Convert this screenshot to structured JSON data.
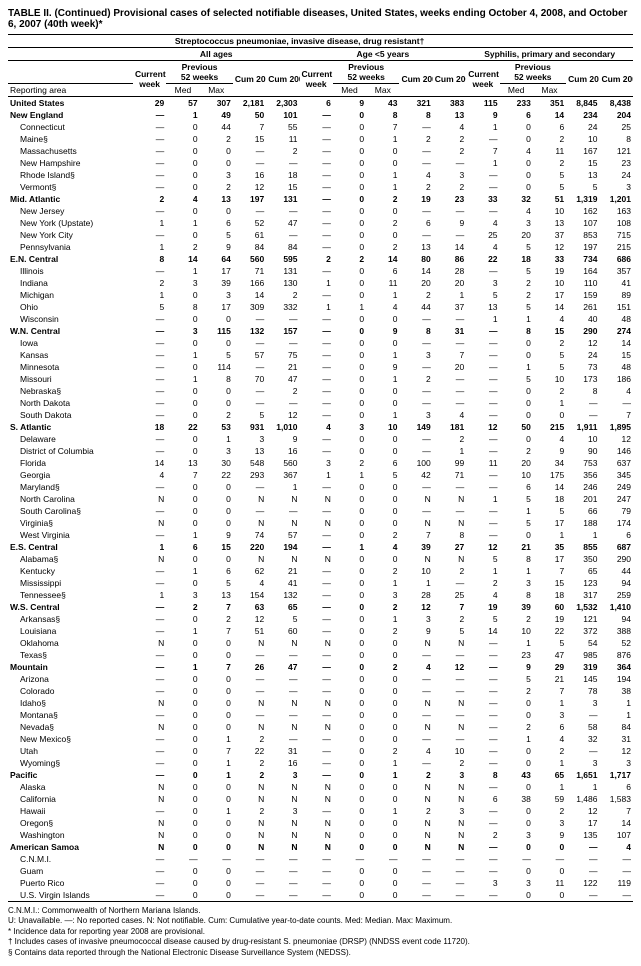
{
  "title": "TABLE II. (Continued) Provisional cases of selected notifiable diseases, United States, weeks ending October 4, 2008, and October 6, 2007 (40th week)*",
  "disease_group": "Streptococcus pneumoniae, invasive disease, drug resistant†",
  "groups": [
    "All ages",
    "Age <5 years",
    "Syphilis, primary and secondary"
  ],
  "subhdr": {
    "prev": "Previous",
    "wk": "52 weeks",
    "cur": "Current",
    "week": "week",
    "med": "Med",
    "max": "Max",
    "cum08": "Cum 2008",
    "cum07": "Cum 2007"
  },
  "area_hdr": "Reporting area",
  "rows": [
    {
      "t": "total",
      "n": "United States",
      "v": [
        "29",
        "57",
        "307",
        "2,181",
        "2,303",
        "6",
        "9",
        "43",
        "321",
        "383",
        "115",
        "233",
        "351",
        "8,845",
        "8,438"
      ]
    },
    {
      "t": "region",
      "n": "New England",
      "v": [
        "—",
        "1",
        "49",
        "50",
        "101",
        "—",
        "0",
        "8",
        "8",
        "13",
        "9",
        "6",
        "14",
        "234",
        "204"
      ]
    },
    {
      "t": "sub",
      "n": "Connecticut",
      "v": [
        "—",
        "0",
        "44",
        "7",
        "55",
        "—",
        "0",
        "7",
        "—",
        "4",
        "1",
        "0",
        "6",
        "24",
        "25"
      ]
    },
    {
      "t": "sub",
      "n": "Maine§",
      "v": [
        "—",
        "0",
        "2",
        "15",
        "11",
        "—",
        "0",
        "1",
        "2",
        "2",
        "—",
        "0",
        "2",
        "10",
        "8"
      ]
    },
    {
      "t": "sub",
      "n": "Massachusetts",
      "v": [
        "—",
        "0",
        "0",
        "—",
        "2",
        "—",
        "0",
        "0",
        "—",
        "2",
        "7",
        "4",
        "11",
        "167",
        "121"
      ]
    },
    {
      "t": "sub",
      "n": "New Hampshire",
      "v": [
        "—",
        "0",
        "0",
        "—",
        "—",
        "—",
        "0",
        "0",
        "—",
        "—",
        "1",
        "0",
        "2",
        "15",
        "23"
      ]
    },
    {
      "t": "sub",
      "n": "Rhode Island§",
      "v": [
        "—",
        "0",
        "3",
        "16",
        "18",
        "—",
        "0",
        "1",
        "4",
        "3",
        "—",
        "0",
        "5",
        "13",
        "24"
      ]
    },
    {
      "t": "sub",
      "n": "Vermont§",
      "v": [
        "—",
        "0",
        "2",
        "12",
        "15",
        "—",
        "0",
        "1",
        "2",
        "2",
        "—",
        "0",
        "5",
        "5",
        "3"
      ]
    },
    {
      "t": "region",
      "n": "Mid. Atlantic",
      "v": [
        "2",
        "4",
        "13",
        "197",
        "131",
        "—",
        "0",
        "2",
        "19",
        "23",
        "33",
        "32",
        "51",
        "1,319",
        "1,201"
      ]
    },
    {
      "t": "sub",
      "n": "New Jersey",
      "v": [
        "—",
        "0",
        "0",
        "—",
        "—",
        "—",
        "0",
        "0",
        "—",
        "—",
        "—",
        "4",
        "10",
        "162",
        "163"
      ]
    },
    {
      "t": "sub",
      "n": "New York (Upstate)",
      "v": [
        "1",
        "1",
        "6",
        "52",
        "47",
        "—",
        "0",
        "2",
        "6",
        "9",
        "4",
        "3",
        "13",
        "107",
        "108"
      ]
    },
    {
      "t": "sub",
      "n": "New York City",
      "v": [
        "—",
        "0",
        "5",
        "61",
        "—",
        "—",
        "0",
        "0",
        "—",
        "—",
        "25",
        "20",
        "37",
        "853",
        "715"
      ]
    },
    {
      "t": "sub",
      "n": "Pennsylvania",
      "v": [
        "1",
        "2",
        "9",
        "84",
        "84",
        "—",
        "0",
        "2",
        "13",
        "14",
        "4",
        "5",
        "12",
        "197",
        "215"
      ]
    },
    {
      "t": "region",
      "n": "E.N. Central",
      "v": [
        "8",
        "14",
        "64",
        "560",
        "595",
        "2",
        "2",
        "14",
        "80",
        "86",
        "22",
        "18",
        "33",
        "734",
        "686"
      ]
    },
    {
      "t": "sub",
      "n": "Illinois",
      "v": [
        "—",
        "1",
        "17",
        "71",
        "131",
        "—",
        "0",
        "6",
        "14",
        "28",
        "—",
        "5",
        "19",
        "164",
        "357"
      ]
    },
    {
      "t": "sub",
      "n": "Indiana",
      "v": [
        "2",
        "3",
        "39",
        "166",
        "130",
        "1",
        "0",
        "11",
        "20",
        "20",
        "3",
        "2",
        "10",
        "110",
        "41"
      ]
    },
    {
      "t": "sub",
      "n": "Michigan",
      "v": [
        "1",
        "0",
        "3",
        "14",
        "2",
        "—",
        "0",
        "1",
        "2",
        "1",
        "5",
        "2",
        "17",
        "159",
        "89"
      ]
    },
    {
      "t": "sub",
      "n": "Ohio",
      "v": [
        "5",
        "8",
        "17",
        "309",
        "332",
        "1",
        "1",
        "4",
        "44",
        "37",
        "13",
        "5",
        "14",
        "261",
        "151"
      ]
    },
    {
      "t": "sub",
      "n": "Wisconsin",
      "v": [
        "—",
        "0",
        "0",
        "—",
        "—",
        "—",
        "0",
        "0",
        "—",
        "—",
        "1",
        "1",
        "4",
        "40",
        "48"
      ]
    },
    {
      "t": "region",
      "n": "W.N. Central",
      "v": [
        "—",
        "3",
        "115",
        "132",
        "157",
        "—",
        "0",
        "9",
        "8",
        "31",
        "—",
        "8",
        "15",
        "290",
        "274"
      ]
    },
    {
      "t": "sub",
      "n": "Iowa",
      "v": [
        "—",
        "0",
        "0",
        "—",
        "—",
        "—",
        "0",
        "0",
        "—",
        "—",
        "—",
        "0",
        "2",
        "12",
        "14"
      ]
    },
    {
      "t": "sub",
      "n": "Kansas",
      "v": [
        "—",
        "1",
        "5",
        "57",
        "75",
        "—",
        "0",
        "1",
        "3",
        "7",
        "—",
        "0",
        "5",
        "24",
        "15"
      ]
    },
    {
      "t": "sub",
      "n": "Minnesota",
      "v": [
        "—",
        "0",
        "114",
        "—",
        "21",
        "—",
        "0",
        "9",
        "—",
        "20",
        "—",
        "1",
        "5",
        "73",
        "48"
      ]
    },
    {
      "t": "sub",
      "n": "Missouri",
      "v": [
        "—",
        "1",
        "8",
        "70",
        "47",
        "—",
        "0",
        "1",
        "2",
        "—",
        "—",
        "5",
        "10",
        "173",
        "186"
      ]
    },
    {
      "t": "sub",
      "n": "Nebraska§",
      "v": [
        "—",
        "0",
        "0",
        "—",
        "2",
        "—",
        "0",
        "0",
        "—",
        "—",
        "—",
        "0",
        "2",
        "8",
        "4"
      ]
    },
    {
      "t": "sub",
      "n": "North Dakota",
      "v": [
        "—",
        "0",
        "0",
        "—",
        "—",
        "—",
        "0",
        "0",
        "—",
        "—",
        "—",
        "0",
        "1",
        "—",
        "—"
      ]
    },
    {
      "t": "sub",
      "n": "South Dakota",
      "v": [
        "—",
        "0",
        "2",
        "5",
        "12",
        "—",
        "0",
        "1",
        "3",
        "4",
        "—",
        "0",
        "0",
        "—",
        "7"
      ]
    },
    {
      "t": "region",
      "n": "S. Atlantic",
      "v": [
        "18",
        "22",
        "53",
        "931",
        "1,010",
        "4",
        "3",
        "10",
        "149",
        "181",
        "12",
        "50",
        "215",
        "1,911",
        "1,895"
      ]
    },
    {
      "t": "sub",
      "n": "Delaware",
      "v": [
        "—",
        "0",
        "1",
        "3",
        "9",
        "—",
        "0",
        "0",
        "—",
        "2",
        "—",
        "0",
        "4",
        "10",
        "12"
      ]
    },
    {
      "t": "sub",
      "n": "District of Columbia",
      "v": [
        "—",
        "0",
        "3",
        "13",
        "16",
        "—",
        "0",
        "0",
        "—",
        "1",
        "—",
        "2",
        "9",
        "90",
        "146"
      ]
    },
    {
      "t": "sub",
      "n": "Florida",
      "v": [
        "14",
        "13",
        "30",
        "548",
        "560",
        "3",
        "2",
        "6",
        "100",
        "99",
        "11",
        "20",
        "34",
        "753",
        "637"
      ]
    },
    {
      "t": "sub",
      "n": "Georgia",
      "v": [
        "4",
        "7",
        "22",
        "293",
        "367",
        "1",
        "1",
        "5",
        "42",
        "71",
        "—",
        "10",
        "175",
        "356",
        "345"
      ]
    },
    {
      "t": "sub",
      "n": "Maryland§",
      "v": [
        "—",
        "0",
        "0",
        "—",
        "1",
        "—",
        "0",
        "0",
        "—",
        "—",
        "—",
        "6",
        "14",
        "246",
        "249"
      ]
    },
    {
      "t": "sub",
      "n": "North Carolina",
      "v": [
        "N",
        "0",
        "0",
        "N",
        "N",
        "N",
        "0",
        "0",
        "N",
        "N",
        "1",
        "5",
        "18",
        "201",
        "247"
      ]
    },
    {
      "t": "sub",
      "n": "South Carolina§",
      "v": [
        "—",
        "0",
        "0",
        "—",
        "—",
        "—",
        "0",
        "0",
        "—",
        "—",
        "—",
        "1",
        "5",
        "66",
        "79"
      ]
    },
    {
      "t": "sub",
      "n": "Virginia§",
      "v": [
        "N",
        "0",
        "0",
        "N",
        "N",
        "N",
        "0",
        "0",
        "N",
        "N",
        "—",
        "5",
        "17",
        "188",
        "174"
      ]
    },
    {
      "t": "sub",
      "n": "West Virginia",
      "v": [
        "—",
        "1",
        "9",
        "74",
        "57",
        "—",
        "0",
        "2",
        "7",
        "8",
        "—",
        "0",
        "1",
        "1",
        "6"
      ]
    },
    {
      "t": "region",
      "n": "E.S. Central",
      "v": [
        "1",
        "6",
        "15",
        "220",
        "194",
        "—",
        "1",
        "4",
        "39",
        "27",
        "12",
        "21",
        "35",
        "855",
        "687"
      ]
    },
    {
      "t": "sub",
      "n": "Alabama§",
      "v": [
        "N",
        "0",
        "0",
        "N",
        "N",
        "N",
        "0",
        "0",
        "N",
        "N",
        "5",
        "8",
        "17",
        "350",
        "290"
      ]
    },
    {
      "t": "sub",
      "n": "Kentucky",
      "v": [
        "—",
        "1",
        "6",
        "62",
        "21",
        "—",
        "0",
        "2",
        "10",
        "2",
        "1",
        "1",
        "7",
        "65",
        "44"
      ]
    },
    {
      "t": "sub",
      "n": "Mississippi",
      "v": [
        "—",
        "0",
        "5",
        "4",
        "41",
        "—",
        "0",
        "1",
        "1",
        "—",
        "2",
        "3",
        "15",
        "123",
        "94"
      ]
    },
    {
      "t": "sub",
      "n": "Tennessee§",
      "v": [
        "1",
        "3",
        "13",
        "154",
        "132",
        "—",
        "0",
        "3",
        "28",
        "25",
        "4",
        "8",
        "18",
        "317",
        "259"
      ]
    },
    {
      "t": "region",
      "n": "W.S. Central",
      "v": [
        "—",
        "2",
        "7",
        "63",
        "65",
        "—",
        "0",
        "2",
        "12",
        "7",
        "19",
        "39",
        "60",
        "1,532",
        "1,410"
      ]
    },
    {
      "t": "sub",
      "n": "Arkansas§",
      "v": [
        "—",
        "0",
        "2",
        "12",
        "5",
        "—",
        "0",
        "1",
        "3",
        "2",
        "5",
        "2",
        "19",
        "121",
        "94"
      ]
    },
    {
      "t": "sub",
      "n": "Louisiana",
      "v": [
        "—",
        "1",
        "7",
        "51",
        "60",
        "—",
        "0",
        "2",
        "9",
        "5",
        "14",
        "10",
        "22",
        "372",
        "388"
      ]
    },
    {
      "t": "sub",
      "n": "Oklahoma",
      "v": [
        "N",
        "0",
        "0",
        "N",
        "N",
        "N",
        "0",
        "0",
        "N",
        "N",
        "—",
        "1",
        "5",
        "54",
        "52"
      ]
    },
    {
      "t": "sub",
      "n": "Texas§",
      "v": [
        "—",
        "0",
        "0",
        "—",
        "—",
        "—",
        "0",
        "0",
        "—",
        "—",
        "—",
        "23",
        "47",
        "985",
        "876"
      ]
    },
    {
      "t": "region",
      "n": "Mountain",
      "v": [
        "—",
        "1",
        "7",
        "26",
        "47",
        "—",
        "0",
        "2",
        "4",
        "12",
        "—",
        "9",
        "29",
        "319",
        "364"
      ]
    },
    {
      "t": "sub",
      "n": "Arizona",
      "v": [
        "—",
        "0",
        "0",
        "—",
        "—",
        "—",
        "0",
        "0",
        "—",
        "—",
        "—",
        "5",
        "21",
        "145",
        "194"
      ]
    },
    {
      "t": "sub",
      "n": "Colorado",
      "v": [
        "—",
        "0",
        "0",
        "—",
        "—",
        "—",
        "0",
        "0",
        "—",
        "—",
        "—",
        "2",
        "7",
        "78",
        "38"
      ]
    },
    {
      "t": "sub",
      "n": "Idaho§",
      "v": [
        "N",
        "0",
        "0",
        "N",
        "N",
        "N",
        "0",
        "0",
        "N",
        "N",
        "—",
        "0",
        "1",
        "3",
        "1"
      ]
    },
    {
      "t": "sub",
      "n": "Montana§",
      "v": [
        "—",
        "0",
        "0",
        "—",
        "—",
        "—",
        "0",
        "0",
        "—",
        "—",
        "—",
        "0",
        "3",
        "—",
        "1"
      ]
    },
    {
      "t": "sub",
      "n": "Nevada§",
      "v": [
        "N",
        "0",
        "0",
        "N",
        "N",
        "N",
        "0",
        "0",
        "N",
        "N",
        "—",
        "2",
        "6",
        "58",
        "84"
      ]
    },
    {
      "t": "sub",
      "n": "New Mexico§",
      "v": [
        "—",
        "0",
        "1",
        "2",
        "—",
        "—",
        "0",
        "0",
        "—",
        "—",
        "—",
        "1",
        "4",
        "32",
        "31"
      ]
    },
    {
      "t": "sub",
      "n": "Utah",
      "v": [
        "—",
        "0",
        "7",
        "22",
        "31",
        "—",
        "0",
        "2",
        "4",
        "10",
        "—",
        "0",
        "2",
        "—",
        "12"
      ]
    },
    {
      "t": "sub",
      "n": "Wyoming§",
      "v": [
        "—",
        "0",
        "1",
        "2",
        "16",
        "—",
        "0",
        "1",
        "—",
        "2",
        "—",
        "0",
        "1",
        "3",
        "3"
      ]
    },
    {
      "t": "region",
      "n": "Pacific",
      "v": [
        "—",
        "0",
        "1",
        "2",
        "3",
        "—",
        "0",
        "1",
        "2",
        "3",
        "8",
        "43",
        "65",
        "1,651",
        "1,717"
      ]
    },
    {
      "t": "sub",
      "n": "Alaska",
      "v": [
        "N",
        "0",
        "0",
        "N",
        "N",
        "N",
        "0",
        "0",
        "N",
        "N",
        "—",
        "0",
        "1",
        "1",
        "6"
      ]
    },
    {
      "t": "sub",
      "n": "California",
      "v": [
        "N",
        "0",
        "0",
        "N",
        "N",
        "N",
        "0",
        "0",
        "N",
        "N",
        "6",
        "38",
        "59",
        "1,486",
        "1,583"
      ]
    },
    {
      "t": "sub",
      "n": "Hawaii",
      "v": [
        "—",
        "0",
        "1",
        "2",
        "3",
        "—",
        "0",
        "1",
        "2",
        "3",
        "—",
        "0",
        "2",
        "12",
        "7"
      ]
    },
    {
      "t": "sub",
      "n": "Oregon§",
      "v": [
        "N",
        "0",
        "0",
        "N",
        "N",
        "N",
        "0",
        "0",
        "N",
        "N",
        "—",
        "0",
        "3",
        "17",
        "14"
      ]
    },
    {
      "t": "sub",
      "n": "Washington",
      "v": [
        "N",
        "0",
        "0",
        "N",
        "N",
        "N",
        "0",
        "0",
        "N",
        "N",
        "2",
        "3",
        "9",
        "135",
        "107"
      ]
    },
    {
      "t": "region",
      "n": "American Samoa",
      "v": [
        "N",
        "0",
        "0",
        "N",
        "N",
        "N",
        "0",
        "0",
        "N",
        "N",
        "—",
        "0",
        "0",
        "—",
        "4"
      ]
    },
    {
      "t": "sub",
      "n": "C.N.M.I.",
      "v": [
        "—",
        "—",
        "—",
        "—",
        "—",
        "—",
        "—",
        "—",
        "—",
        "—",
        "—",
        "—",
        "—",
        "—",
        "—"
      ]
    },
    {
      "t": "sub",
      "n": "Guam",
      "v": [
        "—",
        "0",
        "0",
        "—",
        "—",
        "—",
        "0",
        "0",
        "—",
        "—",
        "—",
        "0",
        "0",
        "—",
        "—"
      ]
    },
    {
      "t": "sub",
      "n": "Puerto Rico",
      "v": [
        "—",
        "0",
        "0",
        "—",
        "—",
        "—",
        "0",
        "0",
        "—",
        "—",
        "3",
        "3",
        "11",
        "122",
        "119"
      ]
    },
    {
      "t": "sub",
      "n": "U.S. Virgin Islands",
      "v": [
        "—",
        "0",
        "0",
        "—",
        "—",
        "—",
        "0",
        "0",
        "—",
        "—",
        "—",
        "0",
        "0",
        "—",
        "—"
      ]
    }
  ],
  "footnotes": [
    "C.N.M.I.: Commonwealth of Northern Mariana Islands.",
    "U: Unavailable.   —: No reported cases.   N: Not notifiable.   Cum: Cumulative year-to-date counts.   Med: Median.   Max: Maximum.",
    "* Incidence data for reporting year 2008 are provisional.",
    "† Includes cases of invasive pneumococcal disease caused by drug-resistant S. pneumoniae (DRSP) (NNDSS event code 11720).",
    "§ Contains data reported through the National Electronic Disease Surveillance System (NEDSS)."
  ]
}
